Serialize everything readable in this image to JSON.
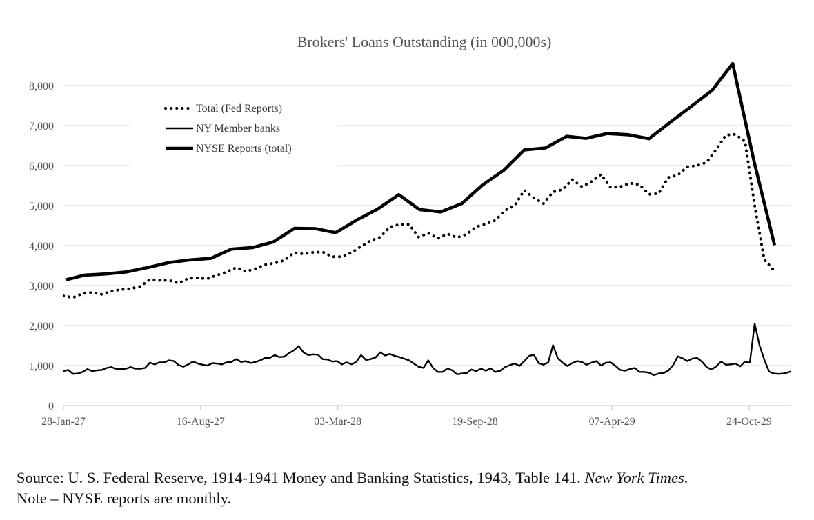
{
  "chart_data": {
    "type": "line",
    "title": "Brokers' Loans Outstanding (in 000,000s)",
    "xlabel": "",
    "ylabel": "",
    "ylim": [
      0,
      8500
    ],
    "yticks": [
      0,
      1000,
      2000,
      3000,
      4000,
      5000,
      6000,
      7000,
      8000
    ],
    "ytick_labels": [
      "0",
      "1,000",
      "2,000",
      "3,000",
      "4,000",
      "5,000",
      "6,000",
      "7,000",
      "8,000"
    ],
    "x_range": [
      "1927-01-28",
      "1929-12-31"
    ],
    "x_ticks": [
      "1927-01-28",
      "1927-08-16",
      "1928-03-03",
      "1928-09-19",
      "1929-04-07",
      "1929-10-24"
    ],
    "x_tick_labels": [
      "28-Jan-27",
      "16-Aug-27",
      "03-Mar-28",
      "19-Sep-28",
      "07-Apr-29",
      "24-Oct-29"
    ],
    "grid": "horizontal",
    "legend_position": "top-left",
    "series": [
      {
        "name": "Total (Fed Reports)",
        "style": "dotted",
        "points": [
          [
            "1927-01-28",
            2740
          ],
          [
            "1927-02-11",
            2700
          ],
          [
            "1927-02-25",
            2800
          ],
          [
            "1927-03-11",
            2830
          ],
          [
            "1927-03-25",
            2780
          ],
          [
            "1927-04-08",
            2860
          ],
          [
            "1927-04-22",
            2900
          ],
          [
            "1927-05-06",
            2920
          ],
          [
            "1927-05-20",
            2980
          ],
          [
            "1927-06-03",
            3150
          ],
          [
            "1927-06-17",
            3130
          ],
          [
            "1927-07-01",
            3130
          ],
          [
            "1927-07-15",
            3060
          ],
          [
            "1927-07-29",
            3180
          ],
          [
            "1927-08-12",
            3190
          ],
          [
            "1927-08-26",
            3170
          ],
          [
            "1927-09-09",
            3260
          ],
          [
            "1927-09-23",
            3340
          ],
          [
            "1927-10-07",
            3450
          ],
          [
            "1927-10-21",
            3350
          ],
          [
            "1927-11-04",
            3420
          ],
          [
            "1927-11-18",
            3520
          ],
          [
            "1927-12-02",
            3560
          ],
          [
            "1927-12-16",
            3630
          ],
          [
            "1927-12-30",
            3820
          ],
          [
            "1928-01-13",
            3790
          ],
          [
            "1928-01-27",
            3830
          ],
          [
            "1928-02-10",
            3840
          ],
          [
            "1928-02-24",
            3720
          ],
          [
            "1928-03-09",
            3720
          ],
          [
            "1928-03-23",
            3820
          ],
          [
            "1928-04-06",
            3980
          ],
          [
            "1928-04-20",
            4120
          ],
          [
            "1928-05-04",
            4210
          ],
          [
            "1928-05-18",
            4460
          ],
          [
            "1928-06-01",
            4530
          ],
          [
            "1928-06-15",
            4530
          ],
          [
            "1928-06-29",
            4210
          ],
          [
            "1928-07-13",
            4310
          ],
          [
            "1928-07-27",
            4180
          ],
          [
            "1928-08-10",
            4290
          ],
          [
            "1928-08-24",
            4200
          ],
          [
            "1928-09-07",
            4280
          ],
          [
            "1928-09-21",
            4470
          ],
          [
            "1928-10-05",
            4540
          ],
          [
            "1928-10-19",
            4630
          ],
          [
            "1928-11-02",
            4880
          ],
          [
            "1928-11-16",
            5000
          ],
          [
            "1928-11-30",
            5380
          ],
          [
            "1928-12-14",
            5190
          ],
          [
            "1928-12-28",
            5050
          ],
          [
            "1929-01-11",
            5340
          ],
          [
            "1929-01-25",
            5400
          ],
          [
            "1929-02-08",
            5650
          ],
          [
            "1929-02-22",
            5470
          ],
          [
            "1929-03-08",
            5600
          ],
          [
            "1929-03-22",
            5780
          ],
          [
            "1929-04-05",
            5450
          ],
          [
            "1929-04-19",
            5470
          ],
          [
            "1929-05-03",
            5560
          ],
          [
            "1929-05-17",
            5520
          ],
          [
            "1929-05-31",
            5280
          ],
          [
            "1929-06-14",
            5300
          ],
          [
            "1929-06-28",
            5700
          ],
          [
            "1929-07-12",
            5760
          ],
          [
            "1929-07-26",
            5970
          ],
          [
            "1929-08-09",
            6000
          ],
          [
            "1929-08-23",
            6080
          ],
          [
            "1929-09-06",
            6400
          ],
          [
            "1929-09-20",
            6760
          ],
          [
            "1929-10-04",
            6780
          ],
          [
            "1929-10-18",
            6600
          ],
          [
            "1929-11-01",
            5000
          ],
          [
            "1929-11-15",
            3650
          ],
          [
            "1929-11-29",
            3380
          ]
        ]
      },
      {
        "name": "NY Member banks",
        "style": "thin",
        "points": [
          [
            "1927-01-28",
            860
          ],
          [
            "1927-02-04",
            890
          ],
          [
            "1927-02-11",
            790
          ],
          [
            "1927-02-18",
            800
          ],
          [
            "1927-02-25",
            840
          ],
          [
            "1927-03-04",
            910
          ],
          [
            "1927-03-11",
            860
          ],
          [
            "1927-03-18",
            880
          ],
          [
            "1927-03-25",
            890
          ],
          [
            "1927-04-01",
            940
          ],
          [
            "1927-04-08",
            960
          ],
          [
            "1927-04-15",
            910
          ],
          [
            "1927-04-22",
            910
          ],
          [
            "1927-04-29",
            920
          ],
          [
            "1927-05-06",
            960
          ],
          [
            "1927-05-13",
            920
          ],
          [
            "1927-05-20",
            920
          ],
          [
            "1927-05-27",
            940
          ],
          [
            "1927-06-03",
            1070
          ],
          [
            "1927-06-10",
            1030
          ],
          [
            "1927-06-17",
            1080
          ],
          [
            "1927-06-24",
            1080
          ],
          [
            "1927-07-01",
            1130
          ],
          [
            "1927-07-08",
            1110
          ],
          [
            "1927-07-15",
            1010
          ],
          [
            "1927-07-22",
            970
          ],
          [
            "1927-07-29",
            1030
          ],
          [
            "1927-08-05",
            1100
          ],
          [
            "1927-08-12",
            1050
          ],
          [
            "1927-08-19",
            1020
          ],
          [
            "1927-08-26",
            1000
          ],
          [
            "1927-09-02",
            1060
          ],
          [
            "1927-09-09",
            1050
          ],
          [
            "1927-09-16",
            1030
          ],
          [
            "1927-09-23",
            1080
          ],
          [
            "1927-09-30",
            1090
          ],
          [
            "1927-10-07",
            1160
          ],
          [
            "1927-10-14",
            1090
          ],
          [
            "1927-10-21",
            1110
          ],
          [
            "1927-10-28",
            1060
          ],
          [
            "1927-11-04",
            1090
          ],
          [
            "1927-11-11",
            1130
          ],
          [
            "1927-11-18",
            1190
          ],
          [
            "1927-11-25",
            1190
          ],
          [
            "1927-12-02",
            1260
          ],
          [
            "1927-12-09",
            1210
          ],
          [
            "1927-12-16",
            1220
          ],
          [
            "1927-12-23",
            1310
          ],
          [
            "1927-12-30",
            1380
          ],
          [
            "1928-01-06",
            1490
          ],
          [
            "1928-01-13",
            1330
          ],
          [
            "1928-01-20",
            1260
          ],
          [
            "1928-01-27",
            1280
          ],
          [
            "1928-02-03",
            1270
          ],
          [
            "1928-02-10",
            1160
          ],
          [
            "1928-02-17",
            1150
          ],
          [
            "1928-02-24",
            1100
          ],
          [
            "1928-03-02",
            1110
          ],
          [
            "1928-03-09",
            1030
          ],
          [
            "1928-03-16",
            1080
          ],
          [
            "1928-03-23",
            1030
          ],
          [
            "1928-03-30",
            1090
          ],
          [
            "1928-04-06",
            1260
          ],
          [
            "1928-04-13",
            1140
          ],
          [
            "1928-04-20",
            1160
          ],
          [
            "1928-04-27",
            1200
          ],
          [
            "1928-05-04",
            1330
          ],
          [
            "1928-05-11",
            1250
          ],
          [
            "1928-05-18",
            1290
          ],
          [
            "1928-05-25",
            1240
          ],
          [
            "1928-06-01",
            1210
          ],
          [
            "1928-06-08",
            1170
          ],
          [
            "1928-06-15",
            1130
          ],
          [
            "1928-06-22",
            1050
          ],
          [
            "1928-06-29",
            970
          ],
          [
            "1928-07-06",
            940
          ],
          [
            "1928-07-13",
            1130
          ],
          [
            "1928-07-20",
            940
          ],
          [
            "1928-07-27",
            840
          ],
          [
            "1928-08-03",
            840
          ],
          [
            "1928-08-10",
            930
          ],
          [
            "1928-08-17",
            880
          ],
          [
            "1928-08-24",
            780
          ],
          [
            "1928-08-31",
            800
          ],
          [
            "1928-09-07",
            810
          ],
          [
            "1928-09-14",
            900
          ],
          [
            "1928-09-21",
            860
          ],
          [
            "1928-09-28",
            920
          ],
          [
            "1928-10-05",
            870
          ],
          [
            "1928-10-12",
            930
          ],
          [
            "1928-10-19",
            840
          ],
          [
            "1928-10-26",
            870
          ],
          [
            "1928-11-02",
            960
          ],
          [
            "1928-11-09",
            1010
          ],
          [
            "1928-11-16",
            1050
          ],
          [
            "1928-11-23",
            990
          ],
          [
            "1928-11-30",
            1110
          ],
          [
            "1928-12-07",
            1240
          ],
          [
            "1928-12-14",
            1270
          ],
          [
            "1928-12-21",
            1060
          ],
          [
            "1928-12-28",
            1020
          ],
          [
            "1929-01-04",
            1080
          ],
          [
            "1929-01-11",
            1510
          ],
          [
            "1929-01-18",
            1180
          ],
          [
            "1929-01-25",
            1070
          ],
          [
            "1929-02-01",
            990
          ],
          [
            "1929-02-08",
            1060
          ],
          [
            "1929-02-15",
            1110
          ],
          [
            "1929-02-22",
            1090
          ],
          [
            "1929-03-01",
            1020
          ],
          [
            "1929-03-08",
            1070
          ],
          [
            "1929-03-15",
            1110
          ],
          [
            "1929-03-22",
            1000
          ],
          [
            "1929-03-29",
            1070
          ],
          [
            "1929-04-05",
            1080
          ],
          [
            "1929-04-12",
            990
          ],
          [
            "1929-04-19",
            890
          ],
          [
            "1929-04-26",
            870
          ],
          [
            "1929-05-03",
            910
          ],
          [
            "1929-05-10",
            940
          ],
          [
            "1929-05-17",
            840
          ],
          [
            "1929-05-24",
            840
          ],
          [
            "1929-05-31",
            820
          ],
          [
            "1929-06-07",
            760
          ],
          [
            "1929-06-14",
            800
          ],
          [
            "1929-06-21",
            810
          ],
          [
            "1929-06-28",
            870
          ],
          [
            "1929-07-05",
            1010
          ],
          [
            "1929-07-12",
            1230
          ],
          [
            "1929-07-19",
            1180
          ],
          [
            "1929-07-26",
            1110
          ],
          [
            "1929-08-02",
            1170
          ],
          [
            "1929-08-09",
            1190
          ],
          [
            "1929-08-16",
            1100
          ],
          [
            "1929-08-23",
            960
          ],
          [
            "1929-08-30",
            900
          ],
          [
            "1929-09-06",
            980
          ],
          [
            "1929-09-13",
            1100
          ],
          [
            "1929-09-20",
            1020
          ],
          [
            "1929-09-27",
            1030
          ],
          [
            "1929-10-04",
            1050
          ],
          [
            "1929-10-11",
            980
          ],
          [
            "1929-10-18",
            1100
          ],
          [
            "1929-10-25",
            1070
          ],
          [
            "1929-11-01",
            2050
          ],
          [
            "1929-11-08",
            1510
          ],
          [
            "1929-11-15",
            1150
          ],
          [
            "1929-11-22",
            850
          ],
          [
            "1929-11-29",
            800
          ],
          [
            "1929-12-06",
            790
          ],
          [
            "1929-12-13",
            800
          ],
          [
            "1929-12-20",
            830
          ],
          [
            "1929-12-27",
            870
          ]
        ]
      },
      {
        "name": "NYSE Reports (total)",
        "style": "thick",
        "points": [
          [
            "1927-01-31",
            3140
          ],
          [
            "1927-02-28",
            3260
          ],
          [
            "1927-03-31",
            3290
          ],
          [
            "1927-04-30",
            3340
          ],
          [
            "1927-05-31",
            3450
          ],
          [
            "1927-06-30",
            3570
          ],
          [
            "1927-07-31",
            3640
          ],
          [
            "1927-08-31",
            3680
          ],
          [
            "1927-09-30",
            3910
          ],
          [
            "1927-10-31",
            3950
          ],
          [
            "1927-11-30",
            4090
          ],
          [
            "1927-12-31",
            4430
          ],
          [
            "1928-01-31",
            4420
          ],
          [
            "1928-02-29",
            4320
          ],
          [
            "1928-03-31",
            4640
          ],
          [
            "1928-04-30",
            4910
          ],
          [
            "1928-05-31",
            5270
          ],
          [
            "1928-06-30",
            4900
          ],
          [
            "1928-07-31",
            4840
          ],
          [
            "1928-08-31",
            5050
          ],
          [
            "1928-09-30",
            5510
          ],
          [
            "1928-10-31",
            5880
          ],
          [
            "1928-11-30",
            6390
          ],
          [
            "1928-12-31",
            6440
          ],
          [
            "1929-01-31",
            6730
          ],
          [
            "1929-02-28",
            6680
          ],
          [
            "1929-03-31",
            6800
          ],
          [
            "1929-04-30",
            6770
          ],
          [
            "1929-05-31",
            6670
          ],
          [
            "1929-06-30",
            7070
          ],
          [
            "1929-07-31",
            7470
          ],
          [
            "1929-08-31",
            7880
          ],
          [
            "1929-09-30",
            8550
          ],
          [
            "1929-10-31",
            6110
          ],
          [
            "1929-11-30",
            4010
          ]
        ]
      }
    ],
    "source_text": "Source: U. S. Federal Reserve, 1914-1941 Money and Banking Statistics, 1943, Table 141.",
    "source_italic": "New York Times",
    "source_end": ".",
    "note_text": "Note – NYSE reports are monthly."
  }
}
